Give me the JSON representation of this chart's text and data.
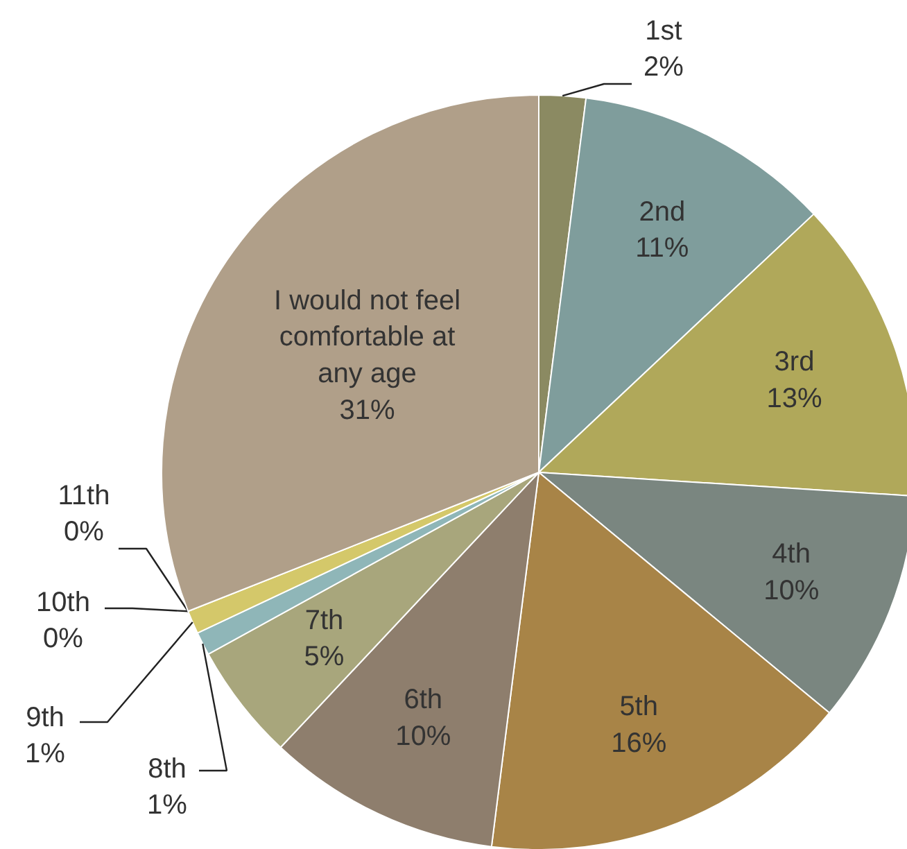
{
  "chart_data": {
    "type": "pie",
    "categories": [
      "1st",
      "2nd",
      "3rd",
      "4th",
      "5th",
      "6th",
      "7th",
      "8th",
      "9th",
      "10th",
      "11th",
      "I would not feel comfortable at any age"
    ],
    "values": [
      2,
      11,
      13,
      10,
      16,
      10,
      5,
      1,
      1,
      0,
      0,
      31
    ],
    "colors": [
      "#8b8a62",
      "#7f9d9c",
      "#b0a85a",
      "#7a8680",
      "#a88447",
      "#8e7e6d",
      "#a8a67c",
      "#8fb6b8",
      "#d4c86a",
      "#c9c48a",
      "#c89b5a",
      "#b09f89"
    ],
    "value_labels": [
      "2%",
      "11%",
      "13%",
      "10%",
      "16%",
      "10%",
      "5%",
      "1%",
      "1%",
      "0%",
      "0%",
      "31%"
    ]
  }
}
